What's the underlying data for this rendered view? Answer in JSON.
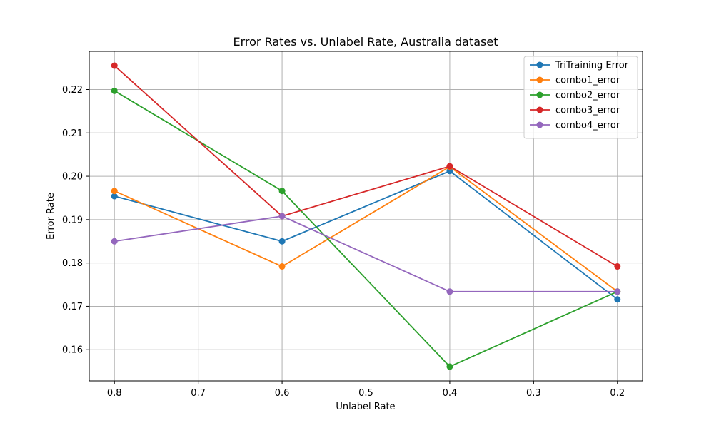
{
  "chart_data": {
    "type": "line",
    "title": "Error Rates vs. Unlabel Rate, Australia dataset",
    "xlabel": "Unlabel Rate",
    "ylabel": "Error Rate",
    "x": [
      0.8,
      0.6,
      0.4,
      0.2
    ],
    "x_axis_reversed": true,
    "xlim": [
      0.83,
      0.17
    ],
    "ylim": [
      0.1528,
      0.2288
    ],
    "x_ticks": [
      0.8,
      0.7,
      0.6,
      0.5,
      0.4,
      0.3,
      0.2
    ],
    "x_tick_labels": [
      "0.8",
      "0.7",
      "0.6",
      "0.5",
      "0.4",
      "0.3",
      "0.2"
    ],
    "y_ticks": [
      0.16,
      0.17,
      0.18,
      0.19,
      0.2,
      0.21,
      0.22
    ],
    "y_tick_labels": [
      "0.16",
      "0.17",
      "0.18",
      "0.19",
      "0.20",
      "0.21",
      "0.22"
    ],
    "grid": true,
    "legend_position": "top-right",
    "markers": "circle",
    "series": [
      {
        "name": "TriTraining Error",
        "color": "#1f77b4",
        "values": [
          0.1954,
          0.185,
          0.2012,
          0.1716
        ]
      },
      {
        "name": "combo1_error",
        "color": "#ff7f0e",
        "values": [
          0.1966,
          0.1792,
          0.2022,
          0.1734
        ]
      },
      {
        "name": "combo2_error",
        "color": "#2ca02c",
        "values": [
          0.2197,
          0.1966,
          0.1561,
          0.1734
        ]
      },
      {
        "name": "combo3_error",
        "color": "#d62728",
        "values": [
          0.2255,
          0.1908,
          0.2023,
          0.1792
        ]
      },
      {
        "name": "combo4_error",
        "color": "#9467bd",
        "values": [
          0.185,
          0.1908,
          0.1734,
          0.1734
        ]
      }
    ]
  }
}
